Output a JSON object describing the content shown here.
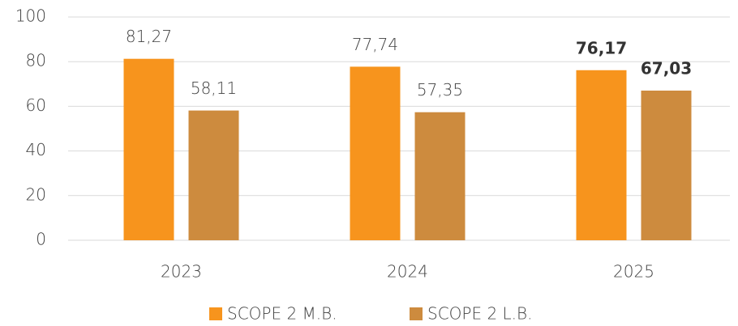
{
  "chart_data": {
    "type": "bar",
    "categories": [
      "2023",
      "2024",
      "2025"
    ],
    "series": [
      {
        "name": "SCOPE 2 M.B.",
        "color": "#f7941d",
        "values": [
          81.27,
          77.74,
          76.17
        ],
        "value_labels": [
          "81,27",
          "77,74",
          "76,17"
        ],
        "value_labels_bold": [
          false,
          false,
          true
        ]
      },
      {
        "name": "SCOPE 2 L.B.",
        "color": "#cd8b3e",
        "values": [
          58.11,
          57.35,
          67.03
        ],
        "value_labels": [
          "58,11",
          "57,35",
          "67,03"
        ],
        "value_labels_bold": [
          false,
          false,
          true
        ]
      }
    ],
    "ylim": [
      0,
      100
    ],
    "yticks": [
      0,
      20,
      40,
      60,
      80,
      100
    ],
    "grid": true,
    "legend": "bottom"
  }
}
